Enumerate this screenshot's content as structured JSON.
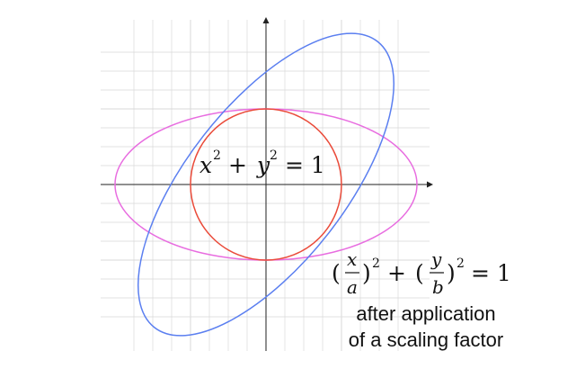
{
  "colors": {
    "grid": "#d9d9d9",
    "axis": "#222222",
    "circle": "#ea4b3a",
    "scaled_ellipse": "#e86de0",
    "rotated_ellipse": "#5b7ff0"
  },
  "labels": {
    "unit_circle": {
      "base_x": "x",
      "exp_x": "2",
      "plus": "+",
      "base_y": "y",
      "exp_y": "2",
      "equals": "= 1"
    },
    "ellipse_eq": {
      "open1": "(",
      "num1": "x",
      "den1": "a",
      "close1": ")",
      "exp1": "2",
      "plus": "+",
      "open2": "(",
      "num2": "y",
      "den2": "b",
      "close2": ")",
      "exp2": "2",
      "equals": "= 1"
    },
    "caption_line1": "after application",
    "caption_line2": "of a scaling factor"
  },
  "curves": {
    "unit_circle": {
      "rx": 1,
      "ry": 1,
      "rotation_deg": 0
    },
    "scaled_ellipse": {
      "rx": 2,
      "ry": 1,
      "rotation_deg": 0
    },
    "rotated_ellipse": {
      "rx": 2.4,
      "ry": 1.05,
      "rotation_deg": 52
    }
  }
}
